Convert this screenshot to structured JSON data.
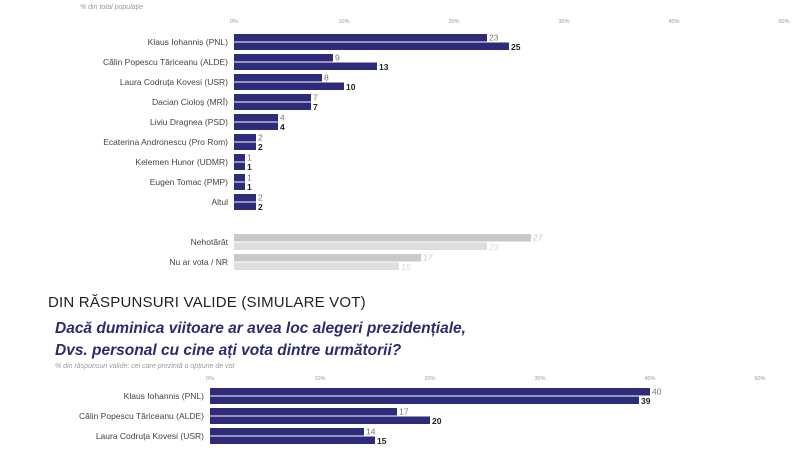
{
  "top": {
    "subtitle": "% din total populație"
  },
  "section2": {
    "heading": "DIN RĂSPUNSURI VALIDE (SIMULARE VOT)",
    "question_line1": "Dacă duminica viitoare ar avea loc alegeri prezidențiale,",
    "question_line2": "Dvs. personal cu cine ați vota dintre următorii?",
    "subtitle": "% din răspunsuri valide: cei care prezintă o opțiune de vot"
  },
  "colors": {
    "accent": "#2e2b7a",
    "grey": "#c9c9c9",
    "grey_light": "#dedede"
  },
  "chart_data": [
    {
      "type": "bar",
      "orientation": "horizontal",
      "xlim": [
        0,
        50
      ],
      "ticks": [
        "0%",
        "10%",
        "20%",
        "30%",
        "40%",
        "50%"
      ],
      "categories": [
        "Klaus Iohannis (PNL)",
        "Călin Popescu Tăriceanu (ALDE)",
        "Laura Codruța Kovesi (USR)",
        "Dacian Cioloș (MRÎ)",
        "Liviu Dragnea (PSD)",
        "Ecaterina Andronescu (Pro Rom)",
        "Kelemen Hunor (UDMR)",
        "Eugen Tomac (PMP)",
        "Altul",
        "Nehotărât",
        "Nu ar vota / NR"
      ],
      "series": [
        {
          "values": [
            23,
            9,
            8,
            7,
            4,
            2,
            1,
            1,
            2,
            27,
            17
          ]
        },
        {
          "values": [
            25,
            13,
            10,
            7,
            4,
            2,
            1,
            1,
            2,
            23,
            15
          ]
        }
      ],
      "grey_categories": [
        "Nehotărât",
        "Nu ar vota / NR"
      ]
    },
    {
      "type": "bar",
      "orientation": "horizontal",
      "xlim": [
        0,
        50
      ],
      "ticks": [
        "0%",
        "10%",
        "20%",
        "30%",
        "40%",
        "50%"
      ],
      "categories": [
        "Klaus Iohannis (PNL)",
        "Călin Popescu Tăriceanu (ALDE)",
        "Laura Codruța Kovesi (USR)"
      ],
      "series": [
        {
          "values": [
            40,
            17,
            14
          ]
        },
        {
          "values": [
            39,
            20,
            15
          ]
        }
      ]
    }
  ]
}
